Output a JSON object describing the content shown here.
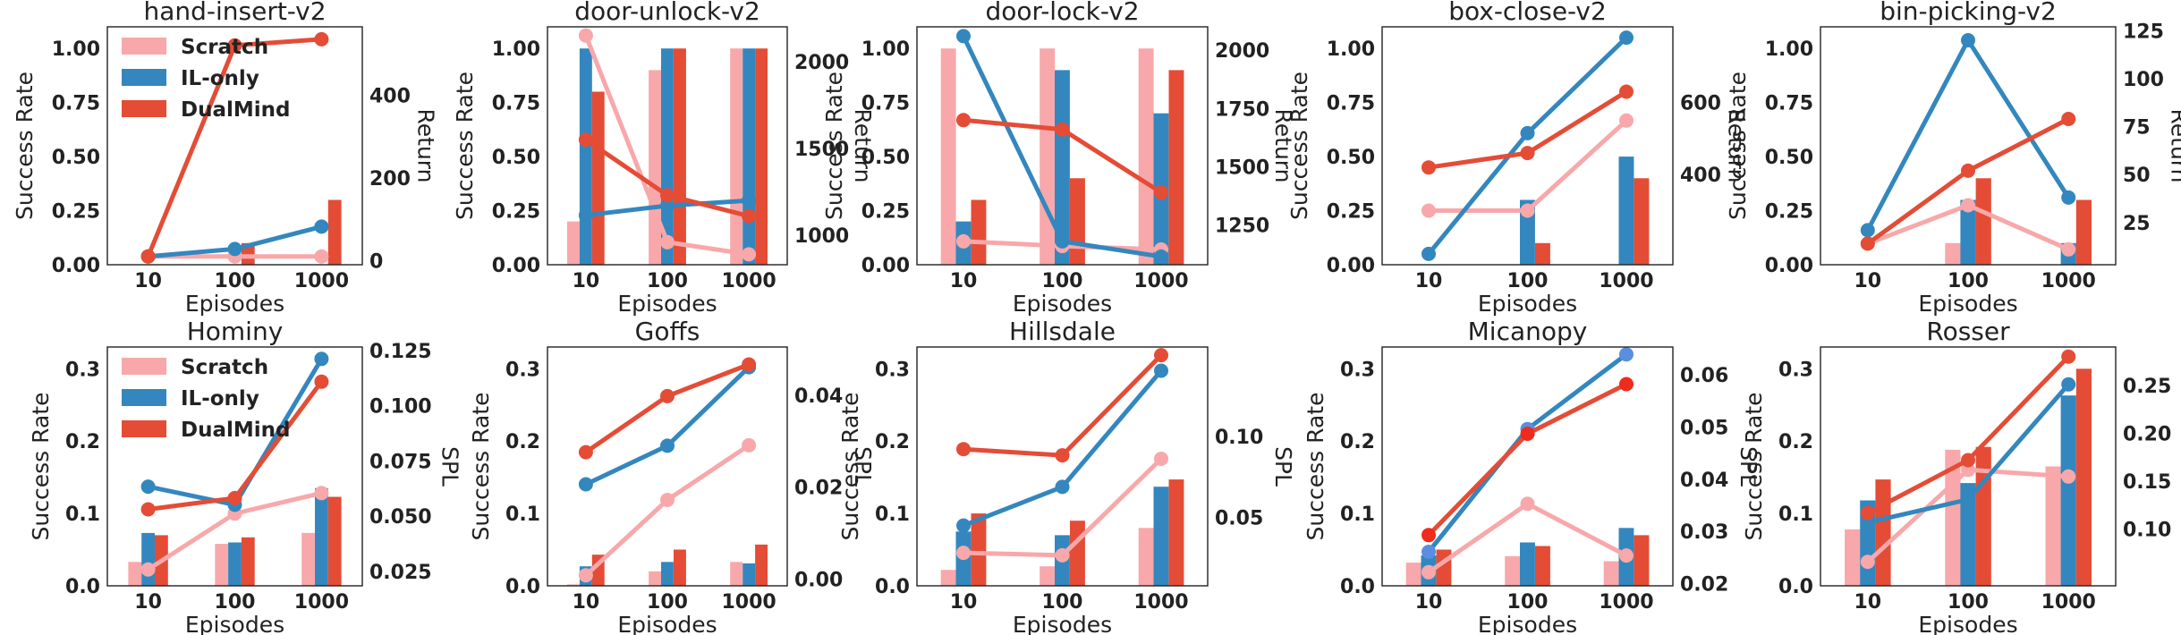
{
  "colors": {
    "scratch_bar": "#f8a8aa",
    "ilonly_bar": "#3387be",
    "dualmind_bar": "#e44c36",
    "scratch_line": "#f8a8aa",
    "ilonly_line": "#3387be",
    "dualmind_line": "#e44c36",
    "bar_dualmind_alt": "#ee3a2a",
    "dot_ilonly_alt": "#5a8ee0",
    "dot_dualmind_alt": "#ee2b1c"
  },
  "legend": [
    "Scratch",
    "IL-only",
    "DualMind"
  ],
  "chart_data": [
    {
      "type": "bar+line",
      "title": "hand-insert-v2",
      "xlabel": "Episodes",
      "ylabel": "Success Rate",
      "ylabel2": "Return",
      "categories": [
        "10",
        "100",
        "1000"
      ],
      "ylim": [
        0,
        1.1
      ],
      "yticks": [
        0.0,
        0.25,
        0.5,
        0.75,
        1.0
      ],
      "ytick_labels": [
        "0.00",
        "0.25",
        "0.50",
        "0.75",
        "1.00"
      ],
      "y2lim": [
        -10,
        565
      ],
      "y2ticks": [
        0,
        200,
        400
      ],
      "y2tick_labels": [
        "0",
        "200",
        "400"
      ],
      "legend": true,
      "bars": [
        {
          "name": "Scratch",
          "values": [
            0,
            0,
            0
          ]
        },
        {
          "name": "IL-only",
          "values": [
            0,
            0,
            0
          ]
        },
        {
          "name": "DualMind",
          "values": [
            0,
            0.1,
            0.3
          ]
        }
      ],
      "lines": [
        {
          "name": "Scratch",
          "values": [
            10,
            10,
            10
          ]
        },
        {
          "name": "IL-only",
          "values": [
            10,
            28,
            82
          ]
        },
        {
          "name": "DualMind",
          "values": [
            10,
            520,
            535
          ]
        }
      ]
    },
    {
      "type": "bar+line",
      "title": "door-unlock-v2",
      "xlabel": "Episodes",
      "ylabel": "Success Rate",
      "ylabel2": "Return",
      "categories": [
        "10",
        "100",
        "1000"
      ],
      "ylim": [
        0,
        1.1
      ],
      "yticks": [
        0.0,
        0.25,
        0.5,
        0.75,
        1.0
      ],
      "ytick_labels": [
        "0.00",
        "0.25",
        "0.50",
        "0.75",
        "1.00"
      ],
      "y2lim": [
        830,
        2200
      ],
      "y2ticks": [
        1000,
        1500,
        2000
      ],
      "y2tick_labels": [
        "1000",
        "1500",
        "2000"
      ],
      "bars": [
        {
          "name": "Scratch",
          "values": [
            0.2,
            0.9,
            1.0
          ]
        },
        {
          "name": "IL-only",
          "values": [
            1.0,
            1.0,
            1.0
          ]
        },
        {
          "name": "DualMind",
          "values": [
            0.8,
            1.0,
            1.0
          ]
        }
      ],
      "lines": [
        {
          "name": "Scratch",
          "values": [
            2150,
            960,
            890
          ]
        },
        {
          "name": "IL-only",
          "values": [
            1115,
            1170,
            1200
          ]
        },
        {
          "name": "DualMind",
          "values": [
            1550,
            1230,
            1110
          ]
        }
      ]
    },
    {
      "type": "bar+line",
      "title": "door-lock-v2",
      "xlabel": "Episodes",
      "ylabel": "Success Rate",
      "ylabel2": "Return",
      "categories": [
        "10",
        "100",
        "1000"
      ],
      "ylim": [
        0,
        1.1
      ],
      "yticks": [
        0.0,
        0.25,
        0.5,
        0.75,
        1.0
      ],
      "ytick_labels": [
        "0.00",
        "0.25",
        "0.50",
        "0.75",
        "1.00"
      ],
      "y2lim": [
        1080,
        2100
      ],
      "y2ticks": [
        1250,
        1500,
        1750,
        2000
      ],
      "y2tick_labels": [
        "1250",
        "1500",
        "1750",
        "2000"
      ],
      "bars": [
        {
          "name": "Scratch",
          "values": [
            1.0,
            1.0,
            1.0
          ]
        },
        {
          "name": "IL-only",
          "values": [
            0.2,
            0.9,
            0.7
          ]
        },
        {
          "name": "DualMind",
          "values": [
            0.3,
            0.4,
            0.9
          ]
        }
      ],
      "lines": [
        {
          "name": "Scratch",
          "values": [
            1180,
            1160,
            1145
          ]
        },
        {
          "name": "IL-only",
          "values": [
            2060,
            1180,
            1115
          ]
        },
        {
          "name": "DualMind",
          "values": [
            1700,
            1660,
            1390
          ]
        }
      ]
    },
    {
      "type": "bar+line",
      "title": "box-close-v2",
      "xlabel": "Episodes",
      "ylabel": "Success Rate",
      "ylabel2": "Return",
      "categories": [
        "10",
        "100",
        "1000"
      ],
      "ylim": [
        0,
        1.1
      ],
      "yticks": [
        0.0,
        0.25,
        0.5,
        0.75,
        1.0
      ],
      "ytick_labels": [
        "0.00",
        "0.25",
        "0.50",
        "0.75",
        "1.00"
      ],
      "y2lim": [
        150,
        810
      ],
      "y2ticks": [
        400,
        600
      ],
      "y2tick_labels": [
        "400",
        "600"
      ],
      "bars": [
        {
          "name": "Scratch",
          "values": [
            0,
            0,
            0
          ]
        },
        {
          "name": "IL-only",
          "values": [
            0,
            0.3,
            0.5
          ]
        },
        {
          "name": "DualMind",
          "values": [
            0,
            0.1,
            0.4
          ]
        }
      ],
      "lines": [
        {
          "name": "Scratch",
          "values": [
            300,
            300,
            550
          ]
        },
        {
          "name": "IL-only",
          "values": [
            180,
            515,
            780
          ]
        },
        {
          "name": "DualMind",
          "values": [
            420,
            460,
            630
          ]
        }
      ]
    },
    {
      "type": "bar+line",
      "title": "bin-picking-v2",
      "xlabel": "Episodes",
      "ylabel": "Success Rate",
      "ylabel2": "Return",
      "categories": [
        "10",
        "100",
        "1000"
      ],
      "ylim": [
        0,
        1.1
      ],
      "yticks": [
        0.0,
        0.25,
        0.5,
        0.75,
        1.0
      ],
      "ytick_labels": [
        "0.00",
        "0.25",
        "0.50",
        "0.75",
        "1.00"
      ],
      "y2lim": [
        3,
        127
      ],
      "y2ticks": [
        25,
        50,
        75,
        100,
        125
      ],
      "y2tick_labels": [
        "25",
        "50",
        "75",
        "100",
        "125"
      ],
      "bars": [
        {
          "name": "Scratch",
          "values": [
            0,
            0.1,
            0
          ]
        },
        {
          "name": "IL-only",
          "values": [
            0,
            0.3,
            0.1
          ]
        },
        {
          "name": "DualMind",
          "values": [
            0,
            0.4,
            0.3
          ]
        }
      ],
      "lines": [
        {
          "name": "Scratch",
          "values": [
            14,
            34,
            11
          ]
        },
        {
          "name": "IL-only",
          "values": [
            21,
            120,
            38
          ]
        },
        {
          "name": "DualMind",
          "values": [
            14,
            52,
            79
          ]
        }
      ]
    },
    {
      "type": "bar+line",
      "title": "Hominy",
      "xlabel": "Episodes",
      "ylabel": "Success Rate",
      "ylabel2": "SPL",
      "categories": [
        "10",
        "100",
        "1000"
      ],
      "ylim": [
        0,
        0.33
      ],
      "yticks": [
        0,
        0.1,
        0.2,
        0.3
      ],
      "ytick_labels": [
        "0.0",
        "0.1",
        "0.2",
        "0.3"
      ],
      "y2lim": [
        0.0185,
        0.1266
      ],
      "y2ticks": [
        0.025,
        0.05,
        0.075,
        0.1,
        0.125
      ],
      "y2tick_labels": [
        "0.025",
        "0.050",
        "0.075",
        "0.100",
        "0.125"
      ],
      "legend": true,
      "bars": [
        {
          "name": "Scratch",
          "values": [
            0.033,
            0.058,
            0.073
          ]
        },
        {
          "name": "IL-only",
          "values": [
            0.073,
            0.06,
            0.135
          ]
        },
        {
          "name": "DualMind",
          "values": [
            0.07,
            0.067,
            0.123
          ]
        }
      ],
      "lines": [
        {
          "name": "Scratch",
          "values": [
            0.0259,
            0.0512,
            0.0605
          ]
        },
        {
          "name": "IL-only",
          "values": [
            0.0634,
            0.0552,
            0.1212
          ]
        },
        {
          "name": "DualMind",
          "values": [
            0.0531,
            0.0582,
            0.1109
          ]
        }
      ]
    },
    {
      "type": "bar+line",
      "title": "Goffs",
      "xlabel": "Episodes",
      "ylabel": "Success Rate",
      "ylabel2": "SPL",
      "categories": [
        "10",
        "100",
        "1000"
      ],
      "ylim": [
        0,
        0.33
      ],
      "yticks": [
        0,
        0.1,
        0.2,
        0.3
      ],
      "ytick_labels": [
        "0.0",
        "0.1",
        "0.2",
        "0.3"
      ],
      "y2lim": [
        -0.0015,
        0.0505
      ],
      "y2ticks": [
        0,
        0.02,
        0.04
      ],
      "y2tick_labels": [
        "0.00",
        "0.02",
        "0.04"
      ],
      "bars": [
        {
          "name": "Scratch",
          "values": [
            0.002,
            0.02,
            0.033
          ]
        },
        {
          "name": "IL-only",
          "values": [
            0.027,
            0.033,
            0.031
          ]
        },
        {
          "name": "DualMind",
          "values": [
            0.043,
            0.05,
            0.057
          ]
        }
      ],
      "lines": [
        {
          "name": "Scratch",
          "values": [
            0.0008,
            0.0172,
            0.0291
          ]
        },
        {
          "name": "IL-only",
          "values": [
            0.0206,
            0.029,
            0.0461
          ]
        },
        {
          "name": "DualMind",
          "values": [
            0.0276,
            0.0398,
            0.0467
          ]
        }
      ]
    },
    {
      "type": "bar+line",
      "title": "Hillsdale",
      "xlabel": "Episodes",
      "ylabel": "Success Rate",
      "ylabel2": "SPL",
      "categories": [
        "10",
        "100",
        "1000"
      ],
      "ylim": [
        0,
        0.33
      ],
      "yticks": [
        0,
        0.1,
        0.2,
        0.3
      ],
      "ytick_labels": [
        "0.0",
        "0.1",
        "0.2",
        "0.3"
      ],
      "y2lim": [
        0.008,
        0.155
      ],
      "y2ticks": [
        0.05,
        0.1
      ],
      "y2tick_labels": [
        "0.05",
        "0.10"
      ],
      "bars": [
        {
          "name": "Scratch",
          "values": [
            0.022,
            0.027,
            0.08
          ]
        },
        {
          "name": "IL-only",
          "values": [
            0.075,
            0.07,
            0.137
          ]
        },
        {
          "name": "DualMind",
          "values": [
            0.1,
            0.09,
            0.147
          ]
        }
      ],
      "lines": [
        {
          "name": "Scratch",
          "values": [
            0.0283,
            0.0268,
            0.0862
          ]
        },
        {
          "name": "IL-only",
          "values": [
            0.0451,
            0.0689,
            0.1404
          ]
        },
        {
          "name": "DualMind",
          "values": [
            0.0921,
            0.0883,
            0.15
          ]
        }
      ]
    },
    {
      "type": "bar+line",
      "title": "Micanopy",
      "xlabel": "Episodes",
      "ylabel": "Success Rate",
      "ylabel2": "SPL",
      "categories": [
        "10",
        "100",
        "1000"
      ],
      "ylim": [
        0,
        0.33
      ],
      "yticks": [
        0,
        0.1,
        0.2,
        0.3
      ],
      "ytick_labels": [
        "0.0",
        "0.1",
        "0.2",
        "0.3"
      ],
      "y2lim": [
        0.0196,
        0.0653
      ],
      "y2ticks": [
        0.02,
        0.03,
        0.04,
        0.05,
        0.06
      ],
      "y2tick_labels": [
        "0.02",
        "0.03",
        "0.04",
        "0.05",
        "0.06"
      ],
      "bars": [
        {
          "name": "Scratch",
          "values": [
            0.032,
            0.041,
            0.034
          ]
        },
        {
          "name": "IL-only",
          "values": [
            0.042,
            0.06,
            0.08
          ]
        },
        {
          "name": "DualMind",
          "values": [
            0.05,
            0.055,
            0.07
          ]
        }
      ],
      "lines": [
        {
          "name": "Scratch",
          "values": [
            0.0222,
            0.0353,
            0.0254
          ]
        },
        {
          "name": "IL-only",
          "values": [
            0.0261,
            0.0496,
            0.0639
          ]
        },
        {
          "name": "DualMind",
          "values": [
            0.0293,
            0.0487,
            0.0582
          ]
        }
      ]
    },
    {
      "type": "bar+line",
      "title": "Rosser",
      "xlabel": "Episodes",
      "ylabel": "Success Rate",
      "ylabel2": "SPL",
      "categories": [
        "10",
        "100",
        "1000"
      ],
      "ylim": [
        0,
        0.33
      ],
      "yticks": [
        0,
        0.1,
        0.2,
        0.3
      ],
      "ytick_labels": [
        "0.0",
        "0.1",
        "0.2",
        "0.3"
      ],
      "y2lim": [
        0.041,
        0.29
      ],
      "y2ticks": [
        0.1,
        0.15,
        0.2,
        0.25
      ],
      "y2tick_labels": [
        "0.10",
        "0.15",
        "0.20",
        "0.25"
      ],
      "bars": [
        {
          "name": "Scratch",
          "values": [
            0.078,
            0.188,
            0.165
          ]
        },
        {
          "name": "IL-only",
          "values": [
            0.118,
            0.142,
            0.263
          ]
        },
        {
          "name": "DualMind",
          "values": [
            0.147,
            0.192,
            0.3
          ]
        }
      ],
      "lines": [
        {
          "name": "Scratch",
          "values": [
            0.066,
            0.162,
            0.155
          ]
        },
        {
          "name": "IL-only",
          "values": [
            0.107,
            0.131,
            0.251
          ]
        },
        {
          "name": "DualMind",
          "values": [
            0.117,
            0.172,
            0.28
          ]
        }
      ]
    }
  ]
}
